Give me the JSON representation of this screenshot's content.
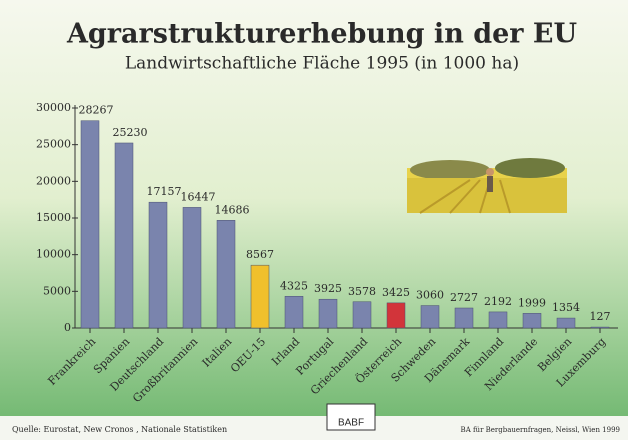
{
  "chart_data": {
    "type": "bar",
    "title": "Agrarstrukturerhebung in der EU",
    "subtitle": "Landwirtschaftliche Fläche 1995 (in 1000 ha)",
    "categories": [
      "Frankreich",
      "Spanien",
      "Deutschland",
      "Großbritannien",
      "Italien",
      "OEU-15",
      "Irland",
      "Portugal",
      "Griechenland",
      "Österreich",
      "Schweden",
      "Dänemark",
      "Finnland",
      "Niederlande",
      "Belgien",
      "Luxemburg"
    ],
    "values": [
      28267,
      25230,
      17157,
      16447,
      14686,
      8567,
      4325,
      3925,
      3578,
      3425,
      3060,
      2727,
      2192,
      1999,
      1354,
      127
    ],
    "colors": [
      "#7a84ad",
      "#7a84ad",
      "#7a84ad",
      "#7a84ad",
      "#7a84ad",
      "#f0c02c",
      "#7a84ad",
      "#7a84ad",
      "#7a84ad",
      "#d2343a",
      "#7a84ad",
      "#7a84ad",
      "#7a84ad",
      "#7a84ad",
      "#7a84ad",
      "#7a84ad"
    ],
    "ylim": [
      0,
      30000
    ],
    "yticks": [
      0,
      5000,
      10000,
      15000,
      20000,
      25000,
      30000
    ],
    "grid": false,
    "source": "Quelle: Eurostat, New Cronos , Nationale Statistiken",
    "logo": "BABF",
    "credit": "BA für Bergbauernfragen, Neissl, Wien 1999"
  }
}
